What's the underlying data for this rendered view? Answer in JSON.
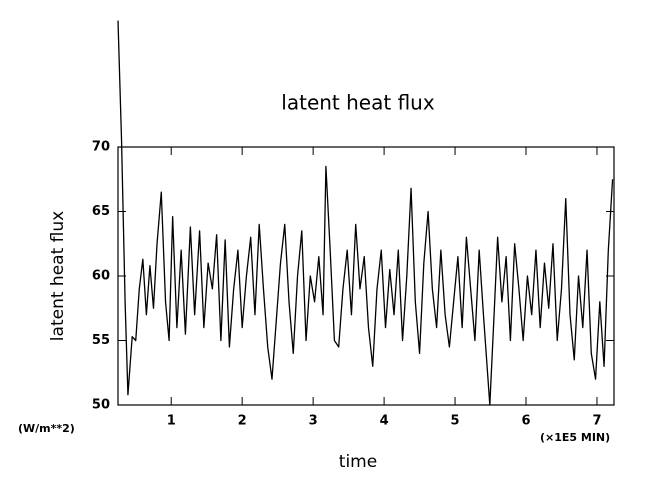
{
  "chart_data": {
    "type": "line",
    "title": "latent heat flux",
    "ylabel": "latent heat flux",
    "xlabel": "time",
    "yunit": "(W/m**2)",
    "xunit": "(×1E5 MIN)",
    "color": "#000000",
    "xlim": [
      0.25,
      7.24
    ],
    "ylim": [
      50,
      70
    ],
    "xticks": [
      1,
      2,
      3,
      4,
      5,
      6,
      7
    ],
    "yticks": [
      50,
      55,
      60,
      65,
      70
    ],
    "x": [
      0.25,
      0.3,
      0.35,
      0.39,
      0.45,
      0.5,
      0.55,
      0.6,
      0.65,
      0.7,
      0.75,
      0.8,
      0.86,
      0.92,
      0.97,
      1.02,
      1.08,
      1.14,
      1.2,
      1.27,
      1.33,
      1.4,
      1.46,
      1.52,
      1.58,
      1.64,
      1.7,
      1.76,
      1.82,
      1.88,
      1.94,
      2.0,
      2.06,
      2.12,
      2.18,
      2.24,
      2.3,
      2.36,
      2.42,
      2.48,
      2.54,
      2.6,
      2.66,
      2.72,
      2.78,
      2.84,
      2.9,
      2.96,
      3.02,
      3.08,
      3.14,
      3.18,
      3.24,
      3.3,
      3.36,
      3.42,
      3.48,
      3.54,
      3.6,
      3.66,
      3.72,
      3.78,
      3.84,
      3.9,
      3.96,
      4.02,
      4.08,
      4.14,
      4.2,
      4.26,
      4.32,
      4.38,
      4.44,
      4.5,
      4.56,
      4.62,
      4.68,
      4.74,
      4.8,
      4.86,
      4.92,
      4.98,
      5.04,
      5.1,
      5.16,
      5.22,
      5.28,
      5.34,
      5.4,
      5.49,
      5.55,
      5.6,
      5.66,
      5.72,
      5.78,
      5.84,
      5.9,
      5.96,
      6.02,
      6.08,
      6.14,
      6.2,
      6.26,
      6.32,
      6.38,
      6.44,
      6.5,
      6.56,
      6.62,
      6.68,
      6.74,
      6.8,
      6.86,
      6.92,
      6.98,
      7.04,
      7.1,
      7.16,
      7.22
    ],
    "values": [
      79.8,
      70.5,
      58,
      50.8,
      55.3,
      55,
      59,
      61.3,
      57,
      60.8,
      57.5,
      62.5,
      66.5,
      58,
      55,
      64.6,
      56,
      62,
      55.5,
      63.8,
      57,
      63.5,
      56,
      61,
      59,
      63.2,
      55,
      62.8,
      54.5,
      59,
      62,
      56,
      60,
      63,
      57,
      64,
      59,
      54.5,
      52,
      56.5,
      61,
      64,
      58,
      54,
      60,
      63.5,
      55,
      60,
      58,
      61.5,
      57,
      68.5,
      62,
      55,
      54.5,
      59,
      62,
      57,
      64,
      59,
      61.5,
      56,
      53,
      59,
      62,
      56,
      60.5,
      57,
      62,
      55,
      60,
      66.8,
      58,
      54,
      61,
      65,
      59,
      56,
      62,
      57,
      54.5,
      58,
      61.5,
      56,
      63,
      59,
      55,
      62,
      57,
      50,
      57,
      63,
      58,
      61.5,
      55,
      62.5,
      59,
      55,
      60,
      57,
      62,
      56,
      61,
      57.5,
      62.5,
      55,
      59,
      66,
      57,
      53.5,
      60,
      56,
      62,
      54,
      52,
      58,
      53,
      62,
      67.5
    ]
  }
}
